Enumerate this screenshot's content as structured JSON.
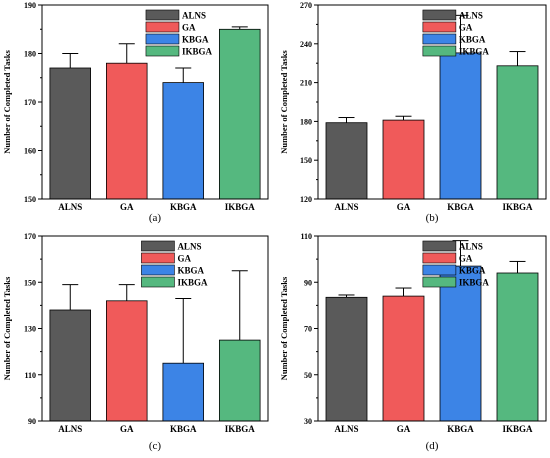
{
  "chart_data": [
    {
      "type": "bar",
      "panel_label": "(a)",
      "categories": [
        "ALNS",
        "GA",
        "KBGA",
        "IKBGA"
      ],
      "values": [
        177,
        178,
        174,
        185
      ],
      "errors": [
        3,
        4,
        3,
        0.5
      ],
      "ylabel": "Number of Completed Tasks",
      "ylim": [
        150,
        190
      ],
      "yticks": [
        150,
        160,
        170,
        180,
        190
      ],
      "legend": [
        "ALNS",
        "GA",
        "KBGA",
        "IKBGA"
      ],
      "legend_position": "top-left"
    },
    {
      "type": "bar",
      "panel_label": "(b)",
      "categories": [
        "ALNS",
        "GA",
        "KBGA",
        "IKBGA"
      ],
      "values": [
        179,
        181,
        233,
        223
      ],
      "errors": [
        4,
        3,
        29,
        11
      ],
      "ylabel": "Number of Completed Tasks",
      "ylim": [
        120,
        270
      ],
      "yticks": [
        120,
        150,
        180,
        210,
        240,
        270
      ],
      "legend": [
        "ALNS",
        "GA",
        "KBGA",
        "IKBGA"
      ],
      "legend_position": "top-left"
    },
    {
      "type": "bar",
      "panel_label": "(c)",
      "categories": [
        "ALNS",
        "GA",
        "KBGA",
        "IKBGA"
      ],
      "values": [
        138,
        142,
        115,
        125
      ],
      "errors": [
        11,
        7,
        28,
        30
      ],
      "ylabel": "Number of Completed Tasks",
      "ylim": [
        90,
        170
      ],
      "yticks": [
        90,
        110,
        130,
        150,
        170
      ],
      "legend": [
        "ALNS",
        "GA",
        "KBGA",
        "IKBGA"
      ],
      "legend_position": "top-right"
    },
    {
      "type": "bar",
      "panel_label": "(d)",
      "categories": [
        "ALNS",
        "GA",
        "KBGA",
        "IKBGA"
      ],
      "values": [
        83.5,
        84,
        97,
        94
      ],
      "errors": [
        1,
        3.5,
        11,
        5
      ],
      "ylabel": "Number of Completed Tasks",
      "ylim": [
        30,
        110
      ],
      "yticks": [
        30,
        50,
        70,
        90,
        110
      ],
      "legend": [
        "ALNS",
        "GA",
        "KBGA",
        "IKBGA"
      ],
      "legend_position": "top-left"
    }
  ],
  "colors": {
    "ALNS": "#5a5a5a",
    "GA": "#f05a5a",
    "KBGA": "#3c84e6",
    "IKBGA": "#55b87f",
    "axis": "#000000"
  }
}
